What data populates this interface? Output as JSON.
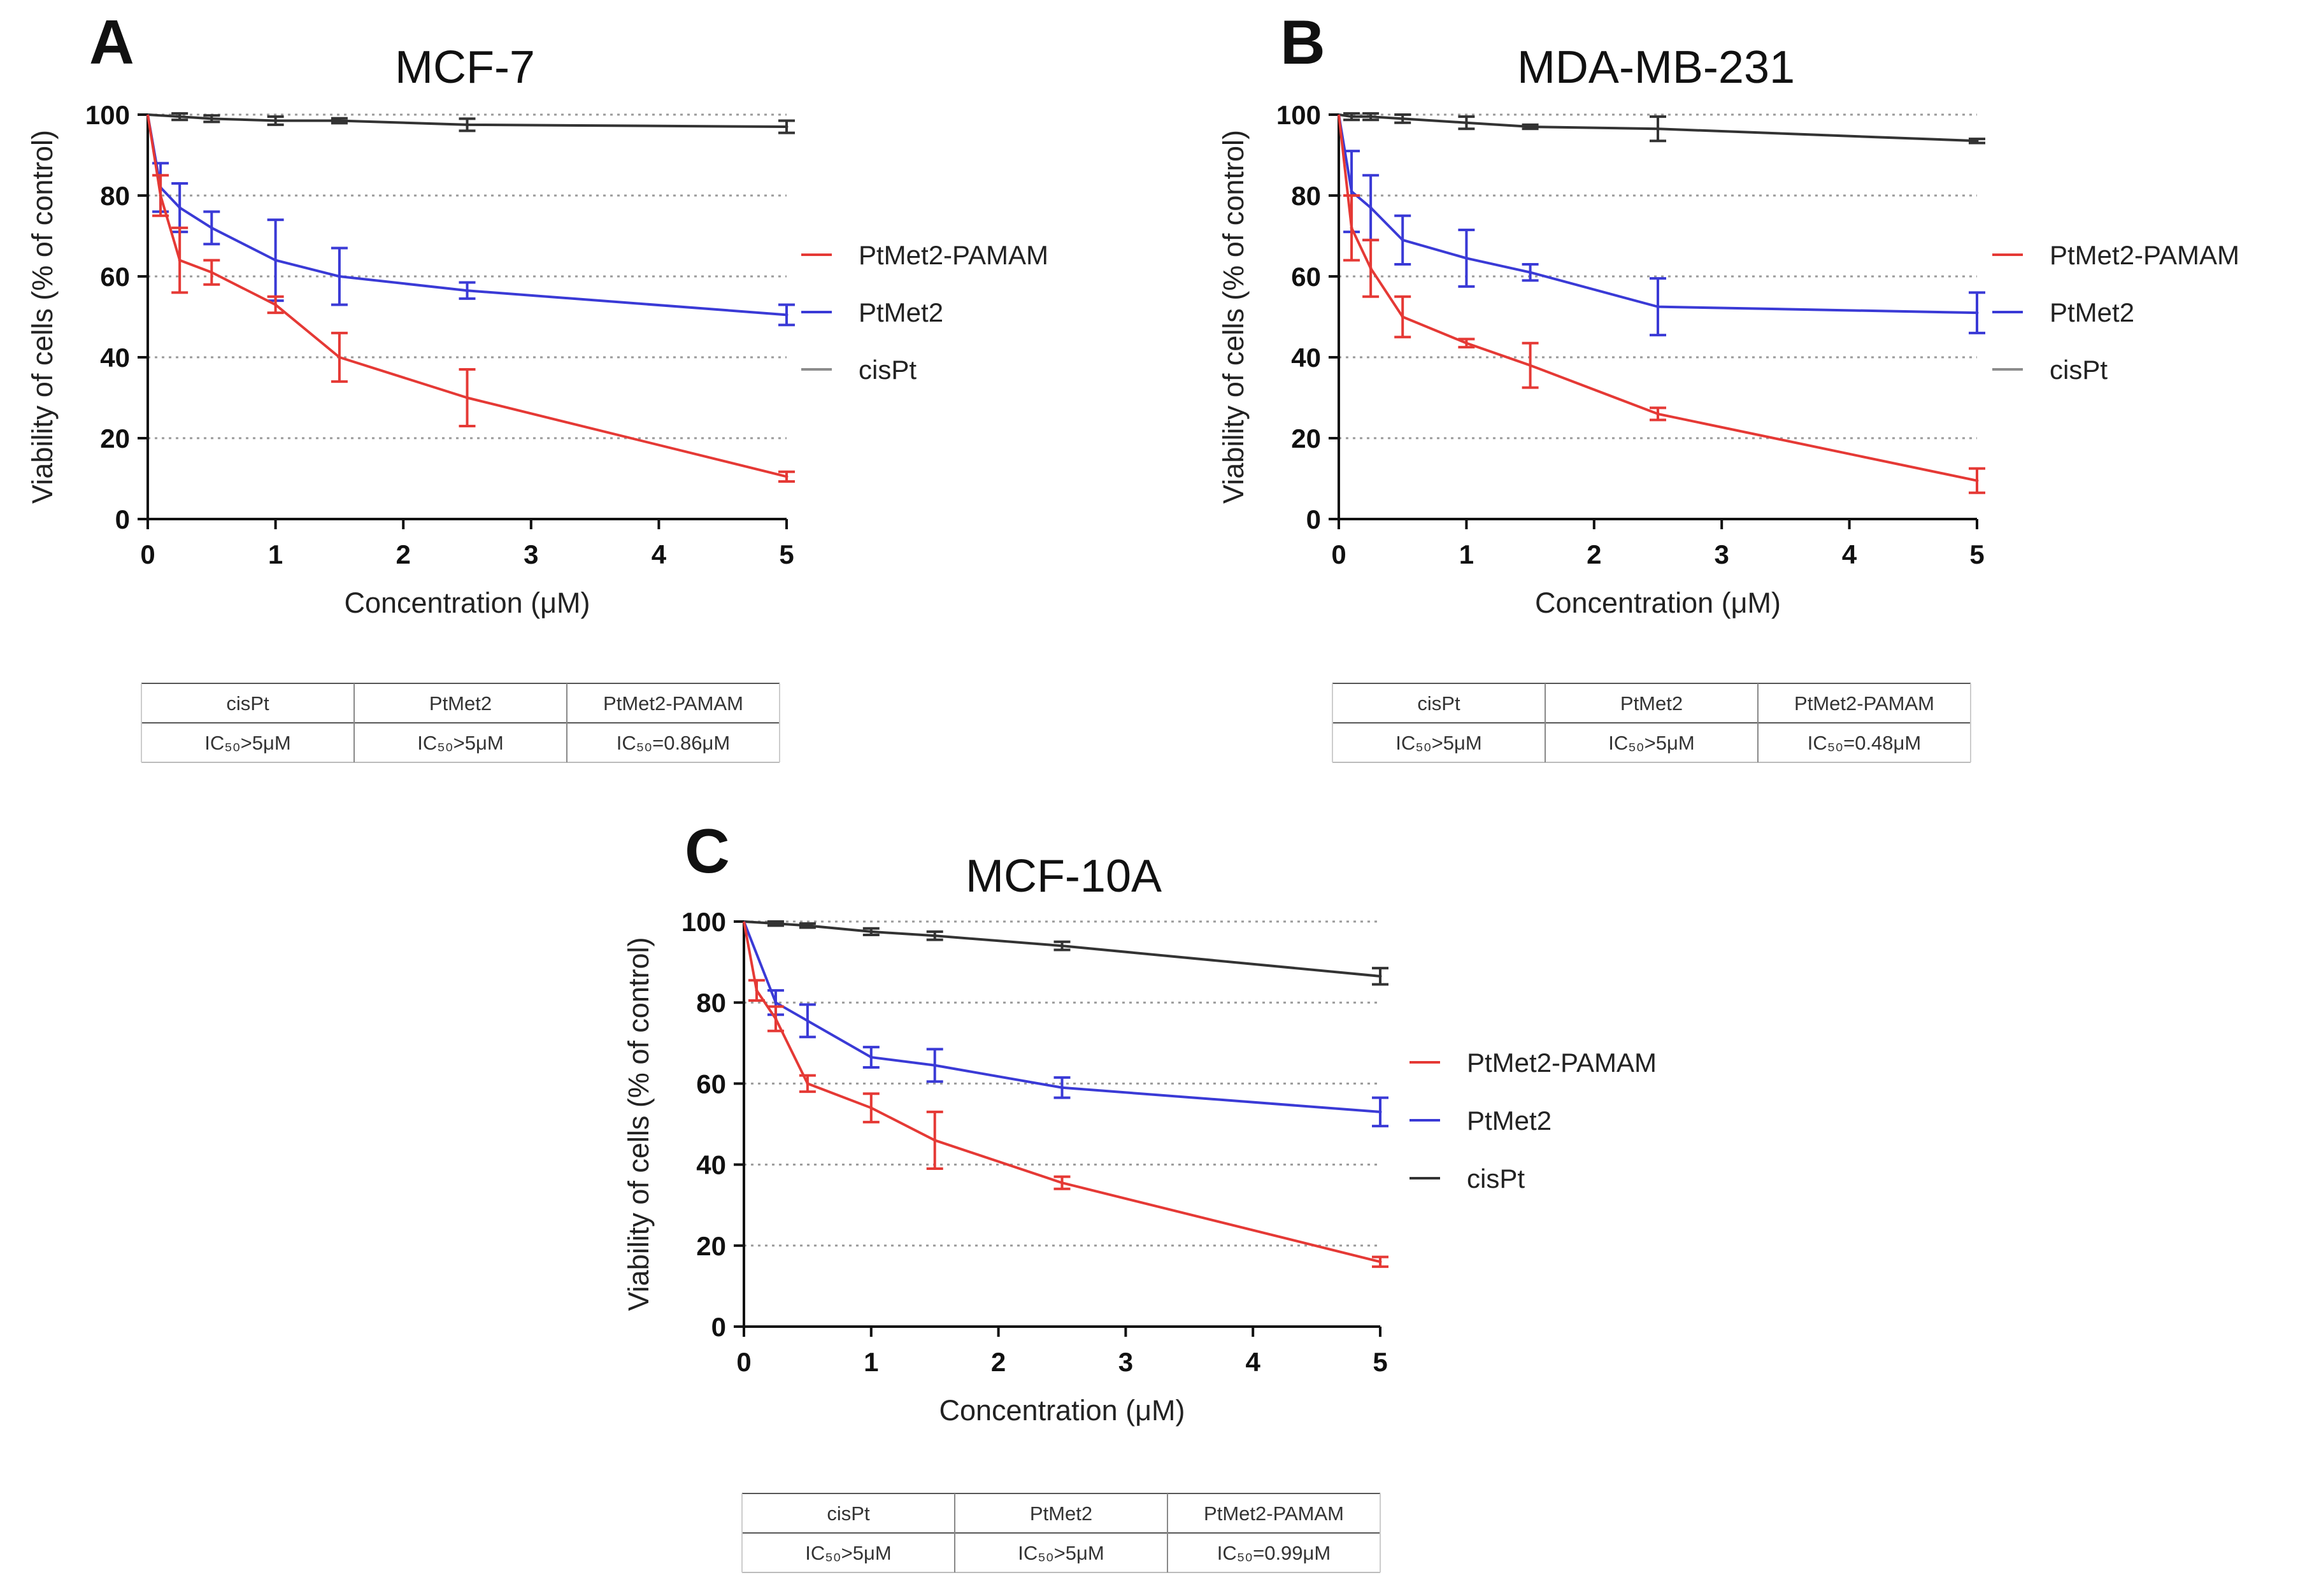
{
  "colors": {
    "PtMet2-PAMAM": "#e53935",
    "PtMet2": "#3a3ad6",
    "cisPt": "#333333",
    "cisPt_legend_light": "#8c8c8c"
  },
  "chart_data": [
    {
      "panel": "A",
      "type": "line",
      "title": "MCF-7",
      "xlabel": "Concentration (μM)",
      "ylabel": "Viability of cells (% of control)",
      "xlim": [
        0,
        5
      ],
      "ylim": [
        0,
        100
      ],
      "xticks": [
        0,
        1,
        2,
        3,
        4,
        5
      ],
      "yticks": [
        0,
        20,
        40,
        60,
        80,
        100
      ],
      "grid": "horizontal-dotted",
      "legend_position": "right",
      "legend": [
        "PtMet2-PAMAM",
        "PtMet2",
        "cisPt"
      ],
      "series": [
        {
          "name": "PtMet2-PAMAM",
          "x": [
            0,
            0.1,
            0.25,
            0.5,
            1,
            1.5,
            2.5,
            5
          ],
          "y": [
            100,
            80,
            64,
            61,
            53,
            40,
            30,
            10.5
          ],
          "err": [
            0,
            5,
            8,
            3,
            2,
            6,
            7,
            1.2
          ]
        },
        {
          "name": "PtMet2",
          "x": [
            0,
            0.1,
            0.25,
            0.5,
            1,
            1.5,
            2.5,
            5
          ],
          "y": [
            100,
            82,
            77,
            72,
            64,
            60,
            56.5,
            50.5
          ],
          "err": [
            0,
            6,
            6,
            4,
            10,
            7,
            2,
            2.5
          ]
        },
        {
          "name": "cisPt",
          "x": [
            0,
            0.25,
            0.5,
            1,
            1.5,
            2.5,
            5
          ],
          "y": [
            100,
            99.5,
            99,
            98.5,
            98.5,
            97.5,
            97
          ],
          "err": [
            0,
            0.8,
            0.8,
            1,
            0.6,
            1.5,
            1.5
          ]
        }
      ],
      "table": {
        "headers": [
          "cisPt",
          "PtMet2",
          "PtMet2-PAMAM"
        ],
        "values": [
          "IC₅₀>5μM",
          "IC₅₀>5μM",
          "IC₅₀=0.86μM"
        ]
      }
    },
    {
      "panel": "B",
      "type": "line",
      "title": "MDA-MB-231",
      "xlabel": "Concentration (μM)",
      "ylabel": "Viability of cells (% of control)",
      "xlim": [
        0,
        5
      ],
      "ylim": [
        0,
        100
      ],
      "xticks": [
        0,
        1,
        2,
        3,
        4,
        5
      ],
      "yticks": [
        0,
        20,
        40,
        60,
        80,
        100
      ],
      "grid": "horizontal-dotted",
      "legend_position": "right",
      "legend": [
        "PtMet2-PAMAM",
        "PtMet2",
        "cisPt"
      ],
      "series": [
        {
          "name": "PtMet2-PAMAM",
          "x": [
            0,
            0.1,
            0.25,
            0.5,
            1,
            1.5,
            2.5,
            5
          ],
          "y": [
            100,
            72,
            62,
            50,
            43.5,
            38,
            26,
            9.5
          ],
          "err": [
            0,
            8,
            7,
            5,
            1,
            5.5,
            1.5,
            3
          ]
        },
        {
          "name": "PtMet2",
          "x": [
            0,
            0.1,
            0.25,
            0.5,
            1,
            1.5,
            2.5,
            5
          ],
          "y": [
            100,
            81,
            77,
            69,
            64.5,
            61,
            52.5,
            51
          ],
          "err": [
            0,
            10,
            8,
            6,
            7,
            2,
            7,
            5
          ]
        },
        {
          "name": "cisPt",
          "x": [
            0,
            0.1,
            0.25,
            0.5,
            1,
            1.5,
            2.5,
            5
          ],
          "y": [
            100,
            99.5,
            99.5,
            99,
            98,
            97,
            96.5,
            93.5
          ],
          "err": [
            0,
            0.8,
            0.8,
            1,
            1.5,
            0.5,
            3,
            0.5
          ]
        }
      ],
      "table": {
        "headers": [
          "cisPt",
          "PtMet2",
          "PtMet2-PAMAM"
        ],
        "values": [
          "IC₅₀>5μM",
          "IC₅₀>5μM",
          "IC₅₀=0.48μM"
        ]
      }
    },
    {
      "panel": "C",
      "type": "line",
      "title": "MCF-10A",
      "xlabel": "Concentration (μM)",
      "ylabel": "Viability of cells (% of control)",
      "xlim": [
        0,
        5
      ],
      "ylim": [
        0,
        100
      ],
      "xticks": [
        0,
        1,
        2,
        3,
        4,
        5
      ],
      "yticks": [
        0,
        20,
        40,
        60,
        80,
        100
      ],
      "grid": "horizontal-dotted",
      "legend_position": "right",
      "legend": [
        "PtMet2-PAMAM",
        "PtMet2",
        "cisPt"
      ],
      "series": [
        {
          "name": "PtMet2-PAMAM",
          "x": [
            0,
            0.1,
            0.25,
            0.5,
            1,
            1.5,
            2.5,
            5
          ],
          "y": [
            100,
            83,
            76,
            60,
            54,
            46,
            35.5,
            16
          ],
          "err": [
            0,
            2.5,
            3,
            2,
            3.5,
            7,
            1.5,
            1.2
          ]
        },
        {
          "name": "PtMet2",
          "x": [
            0,
            0.25,
            0.5,
            1,
            1.5,
            2.5,
            5
          ],
          "y": [
            100,
            80,
            75.5,
            66.5,
            64.5,
            59,
            53
          ],
          "err": [
            0,
            3,
            4,
            2.5,
            4,
            2.5,
            3.5
          ]
        },
        {
          "name": "cisPt",
          "x": [
            0,
            0.25,
            0.5,
            1,
            1.5,
            2.5,
            5
          ],
          "y": [
            100,
            99.5,
            99,
            97.5,
            96.5,
            94,
            86.5
          ],
          "err": [
            0,
            0.5,
            0.5,
            0.8,
            1,
            1,
            2
          ]
        }
      ],
      "table": {
        "headers": [
          "cisPt",
          "PtMet2",
          "PtMet2-PAMAM"
        ],
        "values": [
          "IC₅₀>5μM",
          "IC₅₀>5μM",
          "IC₅₀=0.99μM"
        ]
      }
    }
  ]
}
